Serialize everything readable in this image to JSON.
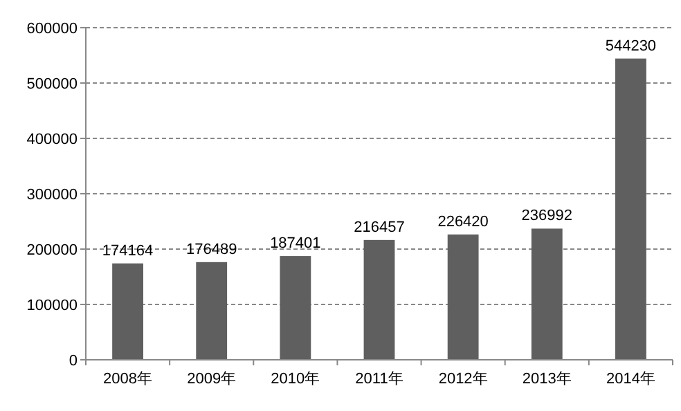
{
  "chart_data": {
    "type": "bar",
    "categories": [
      "2008年",
      "2009年",
      "2010年",
      "2011年",
      "2012年",
      "2013年",
      "2014年"
    ],
    "values": [
      174164,
      176489,
      187401,
      216457,
      226420,
      236992,
      544230
    ],
    "color": "#5f5f5f",
    "ylim": [
      0,
      600000
    ],
    "yticks": [
      0,
      100000,
      200000,
      300000,
      400000,
      500000,
      600000
    ],
    "grid": "y",
    "data_labels": true
  }
}
